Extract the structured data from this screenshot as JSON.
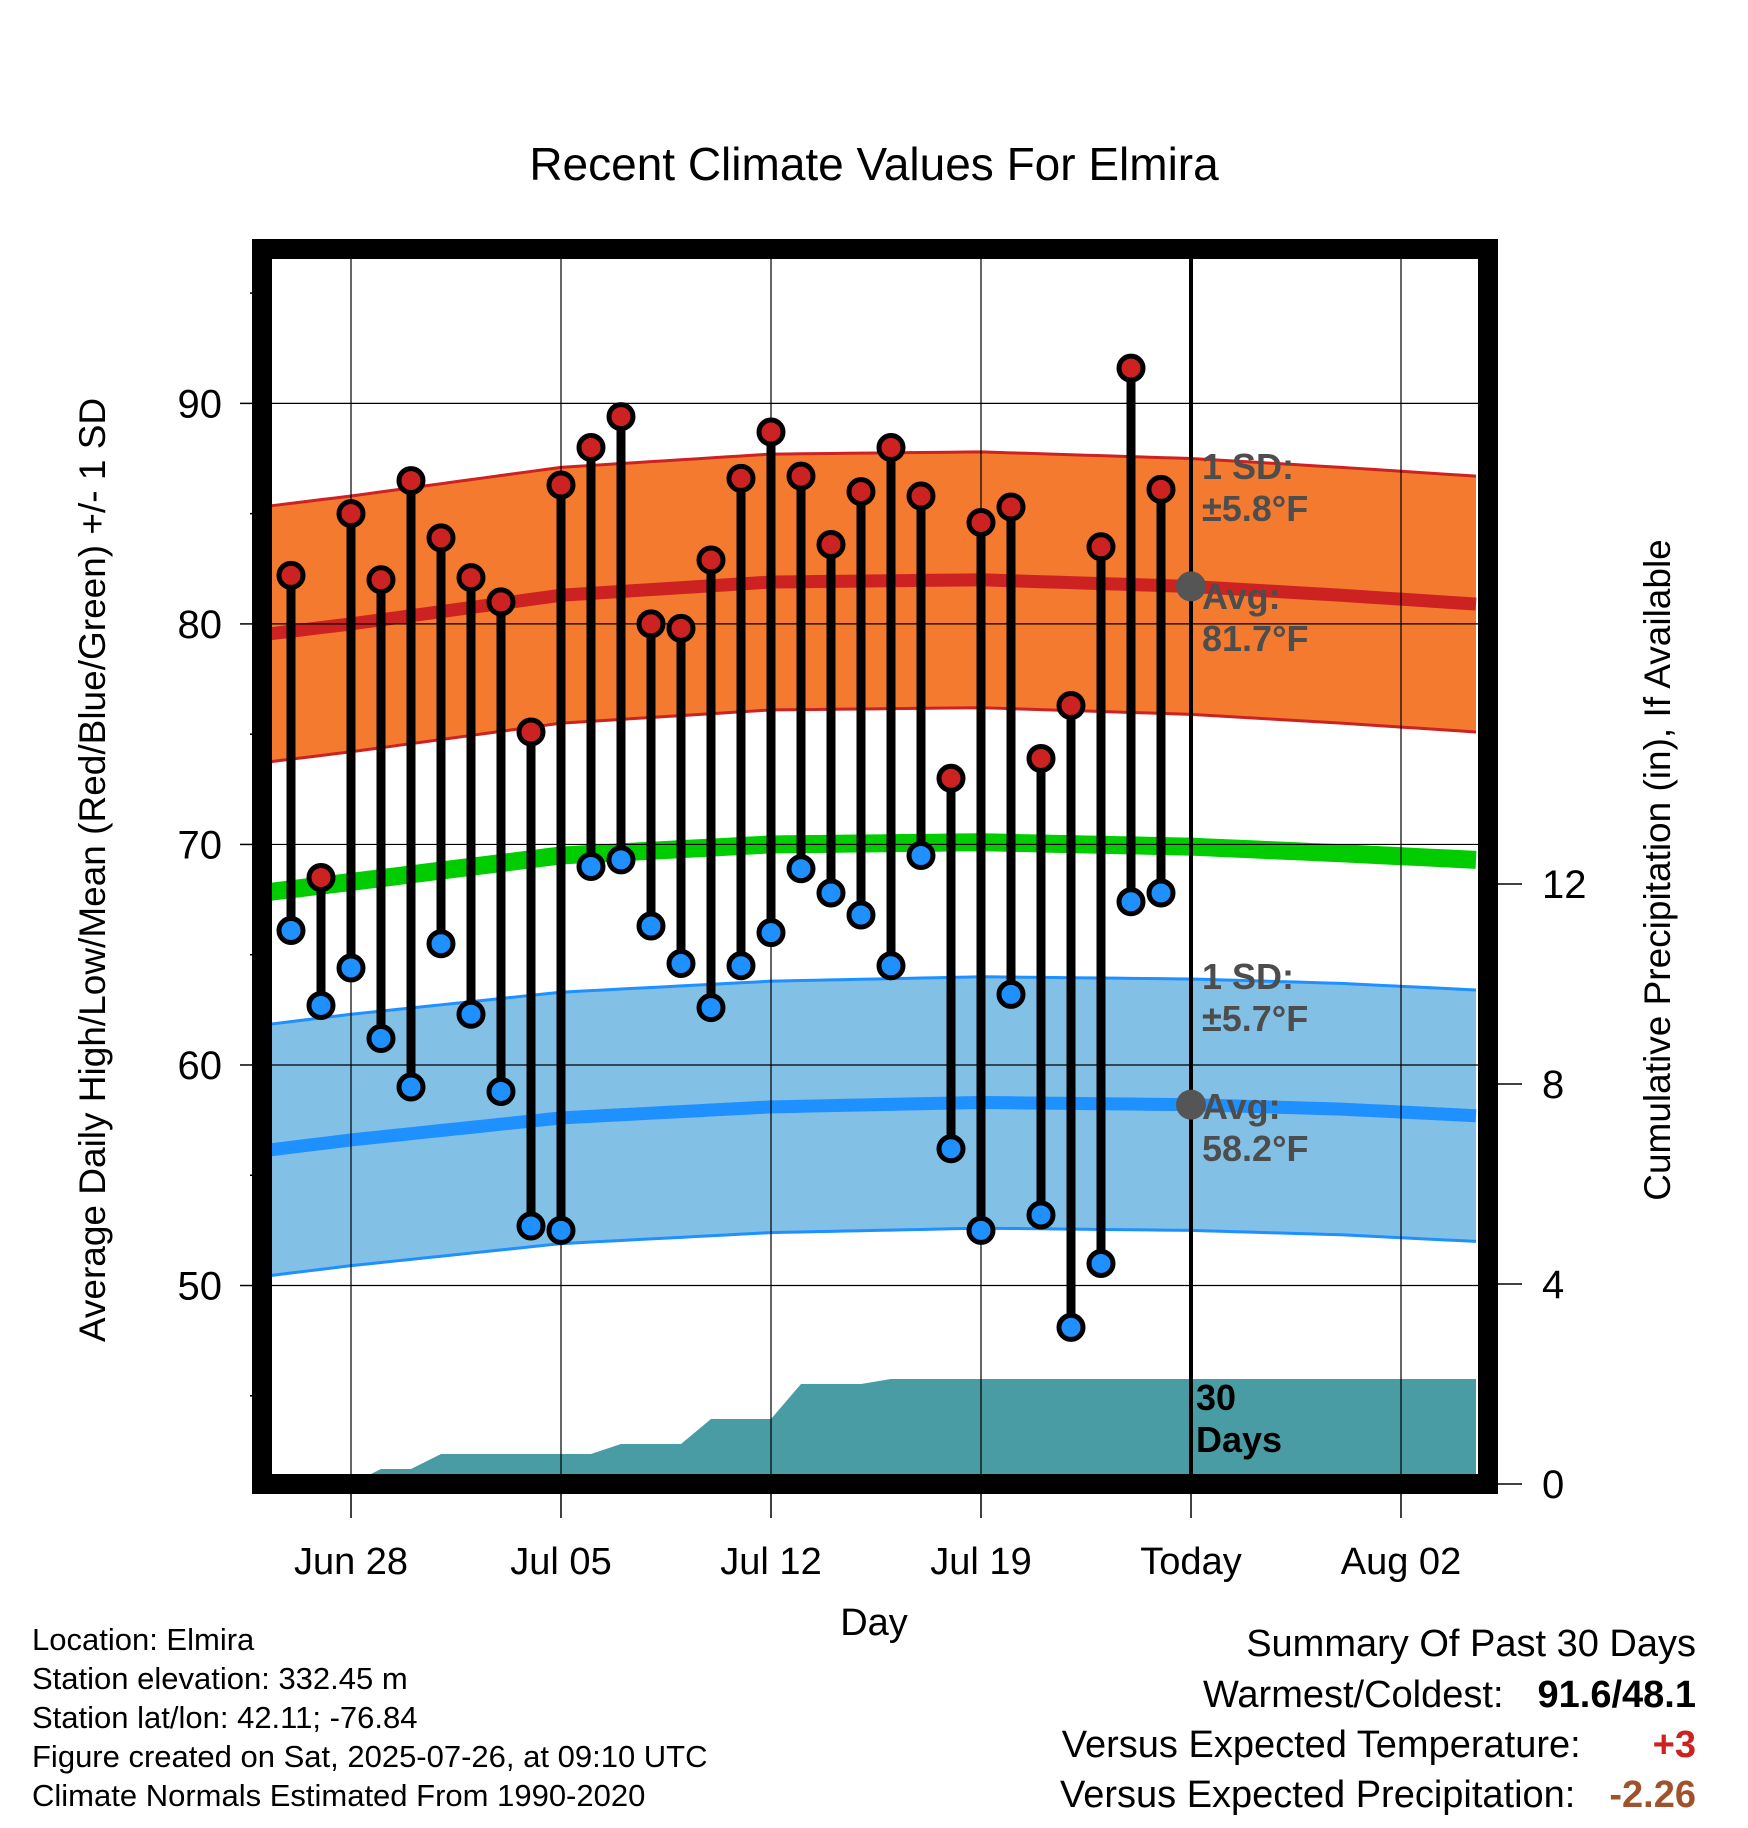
{
  "chart_data": {
    "type": "line",
    "title": "Recent Climate Values For Elmira",
    "xlabel": "Day",
    "ylabel": "Average Daily High/Low/Mean (Red/Blue/Green) +/- 1 SD",
    "ylabel_right": "Cumulative Precipitation (in), If Available",
    "x_ticks": [
      "Jun 28",
      "Jul 05",
      "Jul 12",
      "Jul 19",
      "Today",
      "Aug 02"
    ],
    "y_ticks": [
      50,
      60,
      70,
      80,
      90
    ],
    "y_right_ticks": [
      0,
      4,
      8,
      12
    ],
    "ylim": [
      41,
      97
    ],
    "ylim_right": [
      0,
      24.7
    ],
    "x_range_days_from_today": [
      -31,
      9.5
    ],
    "colors": {
      "high": "#cc2222",
      "high_band": "#f47a2f",
      "low": "#1e90ff",
      "low_band": "#82c0e6",
      "mean": "#00cc00",
      "precip": "#4a9ca4",
      "marker_today": "#555555",
      "annotation": "#4d4d4d"
    },
    "days_from_today": [
      -30,
      -29,
      -28,
      -27,
      -26,
      -25,
      -24,
      -23,
      -22,
      -21,
      -20,
      -19,
      -18,
      -17,
      -16,
      -15,
      -14,
      -13,
      -12,
      -11,
      -10,
      -9,
      -8,
      -7,
      -6,
      -5,
      -4,
      -3,
      -2,
      -1
    ],
    "series": [
      {
        "name": "High",
        "values": [
          82.2,
          68.5,
          85.0,
          82.0,
          86.5,
          83.9,
          82.1,
          81.0,
          75.1,
          86.3,
          88.0,
          89.4,
          80.0,
          79.8,
          82.9,
          86.6,
          88.7,
          86.7,
          83.6,
          86.0,
          88.0,
          85.8,
          73.0,
          84.6,
          85.3,
          73.9,
          76.3,
          83.5,
          91.6,
          86.1
        ]
      },
      {
        "name": "Low",
        "values": [
          66.1,
          62.7,
          64.4,
          61.2,
          59.0,
          65.5,
          62.3,
          58.8,
          52.7,
          52.5,
          69.0,
          69.3,
          66.3,
          64.6,
          62.6,
          64.5,
          66.0,
          68.9,
          67.8,
          66.8,
          64.5,
          69.5,
          56.2,
          52.5,
          63.2,
          53.2,
          48.1,
          51.0,
          67.4,
          67.8
        ]
      }
    ],
    "normals": {
      "days": [
        -31,
        -28,
        -21,
        -14,
        -7,
        0,
        5,
        9.5
      ],
      "high_avg": [
        79.5,
        80.0,
        81.3,
        81.9,
        82.0,
        81.7,
        81.3,
        80.9
      ],
      "low_avg": [
        56.1,
        56.6,
        57.6,
        58.1,
        58.3,
        58.2,
        58.0,
        57.7
      ],
      "mean_avg": [
        67.8,
        68.3,
        69.5,
        70.0,
        70.1,
        69.9,
        69.6,
        69.3
      ],
      "high_sd": 5.8,
      "low_sd": 5.7
    },
    "precip": {
      "days": [
        -31,
        -28,
        -27,
        -26,
        -25,
        -24,
        -23,
        -22,
        -21,
        -20,
        -19,
        -18,
        -17,
        -16,
        -15,
        -14,
        -13,
        -12,
        -11,
        -10,
        -9,
        -8,
        0,
        9.5
      ],
      "cumulative": [
        0,
        0,
        0.3,
        0.3,
        0.6,
        0.6,
        0.6,
        0.6,
        0.6,
        0.6,
        0.8,
        0.8,
        0.8,
        1.3,
        1.3,
        1.3,
        2.0,
        2.0,
        2.0,
        2.1,
        2.1,
        2.1,
        2.1,
        2.1
      ]
    },
    "annotations": {
      "high_sd": [
        "1 SD:",
        "±5.8°F"
      ],
      "high_avg": [
        "Avg:",
        "81.7°F"
      ],
      "low_sd": [
        "1 SD:",
        "±5.7°F"
      ],
      "low_avg": [
        "Avg:",
        "58.2°F"
      ],
      "precip_days": [
        "30",
        "Days"
      ]
    },
    "grid": true,
    "legend": "none"
  },
  "footer": {
    "location": "Location: Elmira",
    "elevation": "Station elevation: 332.45 m",
    "latlon": "Station lat/lon: 42.11; -76.84",
    "created": "Figure created on Sat, 2025-07-26, at 09:10 UTC",
    "normals": "Climate Normals Estimated From 1990-2020"
  },
  "summary": {
    "title": "Summary Of Past 30 Days",
    "warmest_label": "Warmest/Coldest:",
    "warmest_value": "91.6/48.1",
    "temp_label": "Versus Expected Temperature:",
    "temp_value": "+3",
    "temp_color": "#cc2222",
    "precip_label": "Versus Expected Precipitation:",
    "precip_value": "-2.26",
    "precip_color": "#a0522d"
  }
}
